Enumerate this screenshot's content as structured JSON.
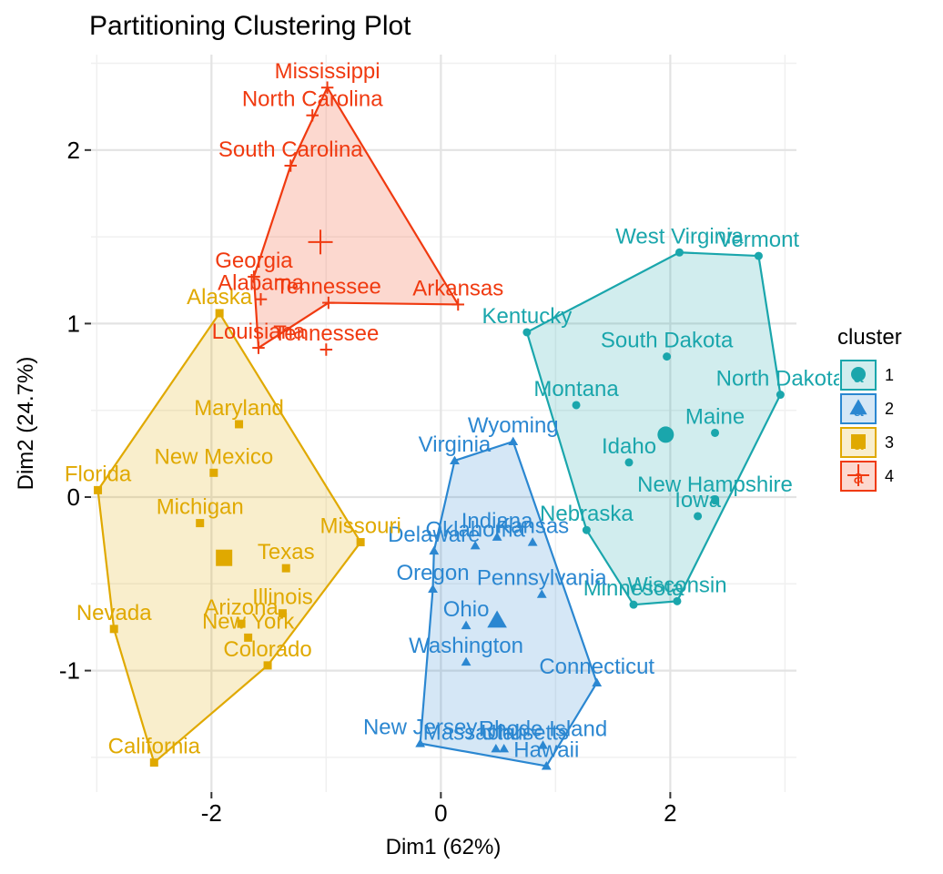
{
  "chart_data": {
    "type": "scatter",
    "title": "Partitioning Clustering Plot",
    "xlabel": "Dim1 (62%)",
    "ylabel": "Dim2 (24.7%)",
    "xlim": [
      -3.05,
      3.1
    ],
    "ylim": [
      -1.7,
      2.55
    ],
    "x_ticks": [
      -2,
      0,
      2
    ],
    "x_tick_labels": [
      "-2",
      "0",
      "2"
    ],
    "y_ticks": [
      -1,
      0,
      1,
      2
    ],
    "y_tick_labels": [
      "-1",
      "0",
      "1",
      "2"
    ],
    "grid": true,
    "legend": {
      "title": "cluster",
      "placement": "right",
      "entries": [
        {
          "label": "1",
          "key_letter": "a",
          "color": "#1aa6ac",
          "shape": "circle"
        },
        {
          "label": "2",
          "key_letter": "a",
          "color": "#2b87d1",
          "shape": "triangle"
        },
        {
          "label": "3",
          "key_letter": "a",
          "color": "#e0a900",
          "shape": "square"
        },
        {
          "label": "4",
          "key_letter": "a",
          "color": "#f03a10",
          "shape": "cross"
        }
      ]
    },
    "series": [
      {
        "name": "1",
        "color": "#1aa6ac",
        "shape": "circle",
        "centroid": [
          1.96,
          0.36
        ],
        "points": [
          {
            "label": "West Virginia",
            "x": 2.08,
            "y": 1.41
          },
          {
            "label": "Vermont",
            "x": 2.77,
            "y": 1.39
          },
          {
            "label": "Kentucky",
            "x": 0.75,
            "y": 0.95
          },
          {
            "label": "South Dakota",
            "x": 1.97,
            "y": 0.81
          },
          {
            "label": "North Dakota",
            "x": 2.96,
            "y": 0.59
          },
          {
            "label": "Montana",
            "x": 1.18,
            "y": 0.53
          },
          {
            "label": "Maine",
            "x": 2.39,
            "y": 0.37
          },
          {
            "label": "Idaho",
            "x": 1.64,
            "y": 0.2
          },
          {
            "label": "New Hampshire",
            "x": 2.39,
            "y": -0.02
          },
          {
            "label": "Iowa",
            "x": 2.24,
            "y": -0.11
          },
          {
            "label": "Nebraska",
            "x": 1.27,
            "y": -0.19
          },
          {
            "label": "Minnesota",
            "x": 1.68,
            "y": -0.62
          },
          {
            "label": "Wisconsin",
            "x": 2.06,
            "y": -0.6
          }
        ]
      },
      {
        "name": "2",
        "color": "#2b87d1",
        "shape": "triangle",
        "centroid": [
          0.49,
          -0.71
        ],
        "points": [
          {
            "label": "Wyoming",
            "x": 0.63,
            "y": 0.32
          },
          {
            "label": "Virginia",
            "x": 0.12,
            "y": 0.21
          },
          {
            "label": "Indiana",
            "x": 0.49,
            "y": -0.23
          },
          {
            "label": "Delaware",
            "x": -0.06,
            "y": -0.31
          },
          {
            "label": "Oklahoma",
            "x": 0.3,
            "y": -0.28
          },
          {
            "label": "Kansas",
            "x": 0.8,
            "y": -0.26
          },
          {
            "label": "Oregon",
            "x": -0.07,
            "y": -0.53
          },
          {
            "label": "Pennsylvania",
            "x": 0.88,
            "y": -0.56
          },
          {
            "label": "Ohio",
            "x": 0.22,
            "y": -0.74
          },
          {
            "label": "Washington",
            "x": 0.22,
            "y": -0.95
          },
          {
            "label": "Connecticut",
            "x": 1.36,
            "y": -1.07
          },
          {
            "label": "New Jersey",
            "x": -0.18,
            "y": -1.42
          },
          {
            "label": "Massachusetts",
            "x": 0.48,
            "y": -1.45
          },
          {
            "label": "Utah",
            "x": 0.55,
            "y": -1.45
          },
          {
            "label": "Rhode Island",
            "x": 0.89,
            "y": -1.43
          },
          {
            "label": "Hawaii",
            "x": 0.92,
            "y": -1.55
          }
        ]
      },
      {
        "name": "3",
        "color": "#e0a900",
        "shape": "square",
        "centroid": [
          -1.89,
          -0.35
        ],
        "points": [
          {
            "label": "Alaska",
            "x": -1.93,
            "y": 1.06
          },
          {
            "label": "Maryland",
            "x": -1.76,
            "y": 0.42
          },
          {
            "label": "New Mexico",
            "x": -1.98,
            "y": 0.14
          },
          {
            "label": "Florida",
            "x": -2.99,
            "y": 0.04
          },
          {
            "label": "Michigan",
            "x": -2.1,
            "y": -0.15
          },
          {
            "label": "Missouri",
            "x": -0.7,
            "y": -0.26
          },
          {
            "label": "Texas",
            "x": -1.35,
            "y": -0.41
          },
          {
            "label": "Illinois",
            "x": -1.38,
            "y": -0.67
          },
          {
            "label": "Arizona",
            "x": -1.74,
            "y": -0.73
          },
          {
            "label": "New York",
            "x": -1.68,
            "y": -0.81
          },
          {
            "label": "Nevada",
            "x": -2.85,
            "y": -0.76
          },
          {
            "label": "Colorado",
            "x": -1.51,
            "y": -0.97
          },
          {
            "label": "California",
            "x": -2.5,
            "y": -1.53
          }
        ]
      },
      {
        "name": "4",
        "color": "#f03a10",
        "shape": "cross",
        "centroid": [
          -1.05,
          1.47
        ],
        "points": [
          {
            "label": "Mississippi",
            "x": -0.99,
            "y": 2.36
          },
          {
            "label": "North Carolina",
            "x": -1.12,
            "y": 2.2
          },
          {
            "label": "South Carolina",
            "x": -1.31,
            "y": 1.91
          },
          {
            "label": "Georgia",
            "x": -1.63,
            "y": 1.27
          },
          {
            "label": "Alabama",
            "x": -1.57,
            "y": 1.14
          },
          {
            "label": "Arkansas",
            "x": 0.15,
            "y": 1.11
          },
          {
            "label": "Tennessee",
            "x": -0.98,
            "y": 1.12
          },
          {
            "label": "Louisiana",
            "x": -1.59,
            "y": 0.86
          },
          {
            "label": "Tennessee",
            "x": -1.0,
            "y": 0.85
          }
        ]
      }
    ],
    "hulls": [
      {
        "series": "1",
        "labels": [
          "Kentucky",
          "West Virginia",
          "Vermont",
          "North Dakota",
          "Wisconsin",
          "Minnesota",
          "Nebraska"
        ]
      },
      {
        "series": "2",
        "labels": [
          "Virginia",
          "Wyoming",
          "Connecticut",
          "Hawaii",
          "New Jersey",
          "Oregon",
          "Delaware"
        ]
      },
      {
        "series": "3",
        "labels": [
          "Alaska",
          "Missouri",
          "Colorado",
          "California",
          "Nevada",
          "Florida"
        ]
      },
      {
        "series": "4",
        "labels": [
          "Mississippi",
          "Arkansas",
          "Tennessee",
          "Louisiana",
          "Georgia",
          "South Carolina"
        ]
      }
    ]
  }
}
